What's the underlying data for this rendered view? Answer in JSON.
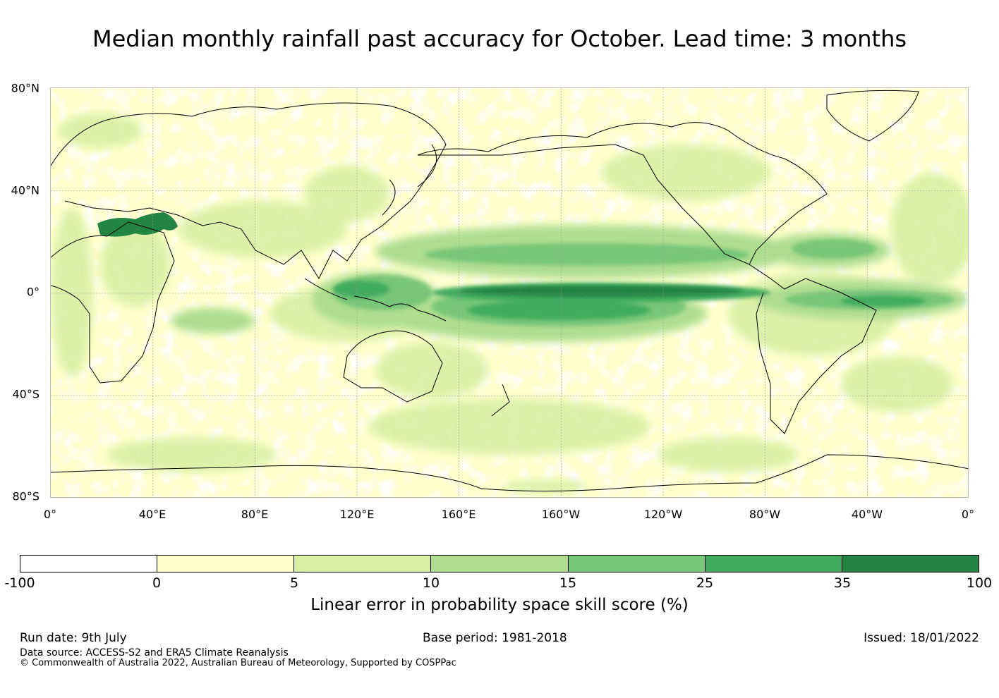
{
  "title": "Median monthly rainfall past accuracy for October. Lead time: 3 months",
  "map": {
    "lat_labels": [
      "80°N",
      "40°N",
      "0°",
      "40°S",
      "80°S"
    ],
    "lon_labels": [
      "0°",
      "40°E",
      "80°E",
      "120°E",
      "160°E",
      "160°W",
      "120°W",
      "80°W",
      "40°W",
      "0°"
    ],
    "ocean_color": "#ffffff",
    "coastline_color": "#000000",
    "gridline_color": "#9a9a9a"
  },
  "colorbar": {
    "ticks": [
      "-100",
      "0",
      "5",
      "10",
      "15",
      "25",
      "35",
      "100"
    ],
    "colors": [
      "#ffffff",
      "#ffffcc",
      "#d9f0a3",
      "#addd8e",
      "#78c679",
      "#41ab5d",
      "#238443"
    ],
    "label": "Linear error in probability space skill score (%)"
  },
  "footer": {
    "run_date": "Run date: 9th July",
    "base_period": "Base period: 1981-2018",
    "issued": "Issued: 18/01/2022",
    "data_source": "Data source: ACCESS-S2 and ERA5 Climate Reanalysis",
    "copyright": "© Commonwealth of Australia 2022, Australian Bureau of Meteorology, Supported by COSPPac"
  }
}
